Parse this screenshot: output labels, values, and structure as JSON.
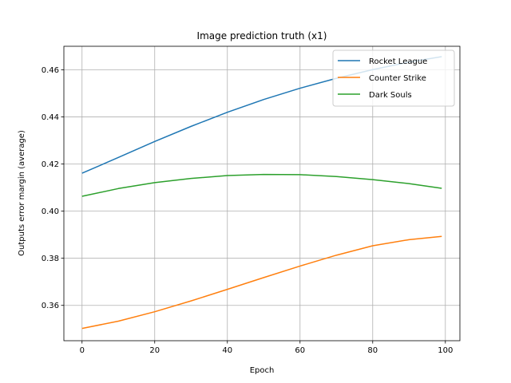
{
  "chart_data": {
    "type": "line",
    "title": "Image prediction truth (x1)",
    "xlabel": "Epoch",
    "ylabel": "Outputs error margin (average)",
    "xlim": [
      -5,
      104
    ],
    "ylim": [
      0.345,
      0.47
    ],
    "xticks": [
      0,
      20,
      40,
      60,
      80,
      100
    ],
    "yticks": [
      0.36,
      0.38,
      0.4,
      0.42,
      0.44,
      0.46
    ],
    "ytick_labels": [
      "0.36",
      "0.38",
      "0.40",
      "0.42",
      "0.44",
      "0.46"
    ],
    "grid": true,
    "legend_position": "top-right",
    "x": [
      0,
      10,
      20,
      30,
      40,
      50,
      60,
      70,
      80,
      90,
      99
    ],
    "series": [
      {
        "name": "Rocket League",
        "color": "#1f77b4",
        "values": [
          0.4161,
          0.4228,
          0.4296,
          0.436,
          0.442,
          0.4474,
          0.4522,
          0.4564,
          0.4601,
          0.4633,
          0.4656
        ]
      },
      {
        "name": "Counter Strike",
        "color": "#ff7f0e",
        "values": [
          0.3502,
          0.3533,
          0.3573,
          0.3619,
          0.3668,
          0.3718,
          0.3767,
          0.3813,
          0.3853,
          0.3879,
          0.3893
        ]
      },
      {
        "name": "Dark Souls",
        "color": "#2ca02c",
        "values": [
          0.4063,
          0.4096,
          0.4121,
          0.4139,
          0.4151,
          0.4156,
          0.4155,
          0.4147,
          0.4134,
          0.4117,
          0.4097
        ]
      }
    ]
  }
}
